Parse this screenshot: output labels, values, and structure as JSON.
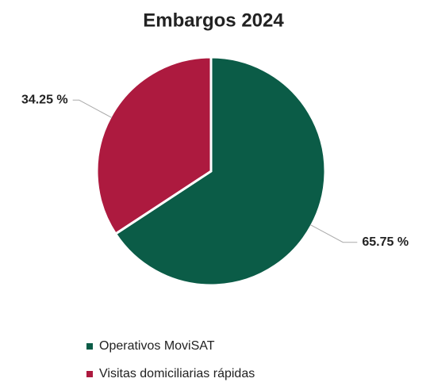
{
  "chart_data": {
    "type": "pie",
    "title": "Embargos 2024",
    "categories": [
      "Operativos MoviSAT",
      "Visitas domiciliarias rápidas"
    ],
    "values": [
      65.75,
      34.25
    ],
    "value_labels": [
      "65.75 %",
      "34.25 %"
    ],
    "colors": [
      "#0b5c47",
      "#ad1a3f"
    ],
    "legend": "bottom"
  }
}
